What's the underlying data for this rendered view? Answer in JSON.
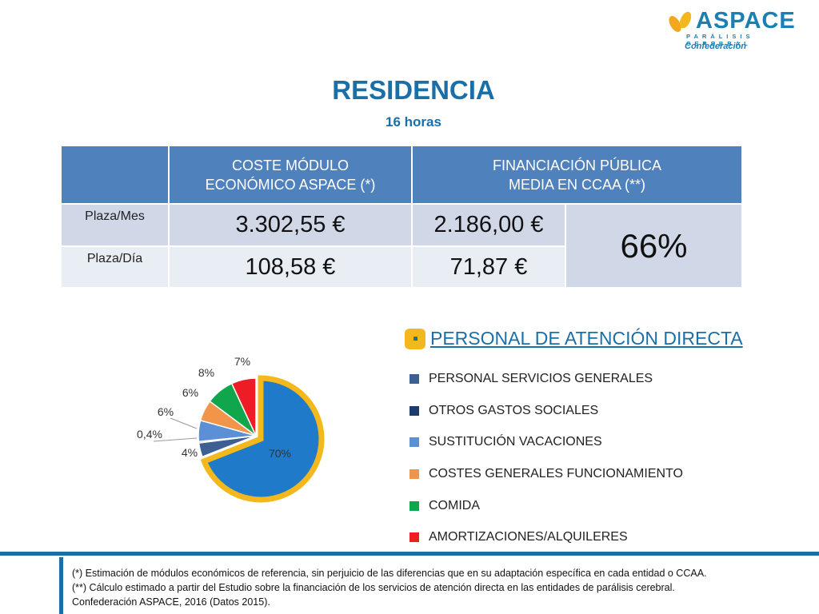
{
  "logo": {
    "word": "ASPACE",
    "sub": "PARÁLISIS CEREBRAL",
    "conf": "Confederación"
  },
  "title": "RESIDENCIA",
  "subtitle": "16 horas",
  "table": {
    "headers": [
      "COSTE MÓDULO\nECONÓMICO ASPACE (*)",
      "FINANCIACIÓN PÚBLICA\nMEDIA EN CCAA (**)"
    ],
    "rows": [
      {
        "label": "Plaza/Mes",
        "coste": "3.302,55 €",
        "financiacion": "2.186,00 €"
      },
      {
        "label": "Plaza/Día",
        "coste": "108,58 €",
        "financiacion": "71,87 €"
      }
    ],
    "percentage": "66%"
  },
  "chart_data": {
    "type": "pie",
    "slices": [
      {
        "name": "PERSONAL DE ATENCIÓN DIRECTA",
        "value": 70,
        "label": "70%",
        "color": "#1f7ac9"
      },
      {
        "name": "PERSONAL SERVICIOS GENERALES",
        "value": 4,
        "label": "4%",
        "color": "#3d5f92"
      },
      {
        "name": "OTROS GASTOS SOCIALES",
        "value": 0.4,
        "label": "0,4%",
        "color": "#1c3d6b"
      },
      {
        "name": "SUSTITUCIÓN VACACIONES",
        "value": 6,
        "label": "6%",
        "color": "#5b8fd6"
      },
      {
        "name": "COSTES GENERALES FUNCIONAMIENTO",
        "value": 6,
        "label": "6%",
        "color": "#f0954a"
      },
      {
        "name": "COMIDA",
        "value": 8,
        "label": "8%",
        "color": "#10a64b"
      },
      {
        "name": "AMORTIZACIONES/ALQUILERES",
        "value": 7,
        "label": "7%",
        "color": "#ee1c24"
      }
    ],
    "highlight_color": "#f2b81c",
    "legend_placement": "right"
  },
  "legend": {
    "title": "PERSONAL DE ATENCIÓN DIRECTA",
    "items": [
      {
        "label": "PERSONAL SERVICIOS GENERALES",
        "color": "#3d5f92"
      },
      {
        "label": "OTROS GASTOS SOCIALES",
        "color": "#1c3d6b"
      },
      {
        "label": "SUSTITUCIÓN VACACIONES",
        "color": "#5b8fd6"
      },
      {
        "label": "COSTES GENERALES FUNCIONAMIENTO",
        "color": "#f0954a"
      },
      {
        "label": "COMIDA",
        "color": "#10a64b"
      },
      {
        "label": "AMORTIZACIONES/ALQUILERES",
        "color": "#ee1c24"
      }
    ]
  },
  "footer": {
    "lines": [
      "(*) Estimación de módulos económicos de referencia, sin perjuicio de las diferencias que en su adaptación específica en cada entidad o CCAA.",
      "(**) Cálculo estimado a partir del Estudio sobre la financiación de los servicios de atención directa en las entidades de parálisis cerebral.",
      "Confederación ASPACE, 2016 (Datos 2015)."
    ]
  }
}
